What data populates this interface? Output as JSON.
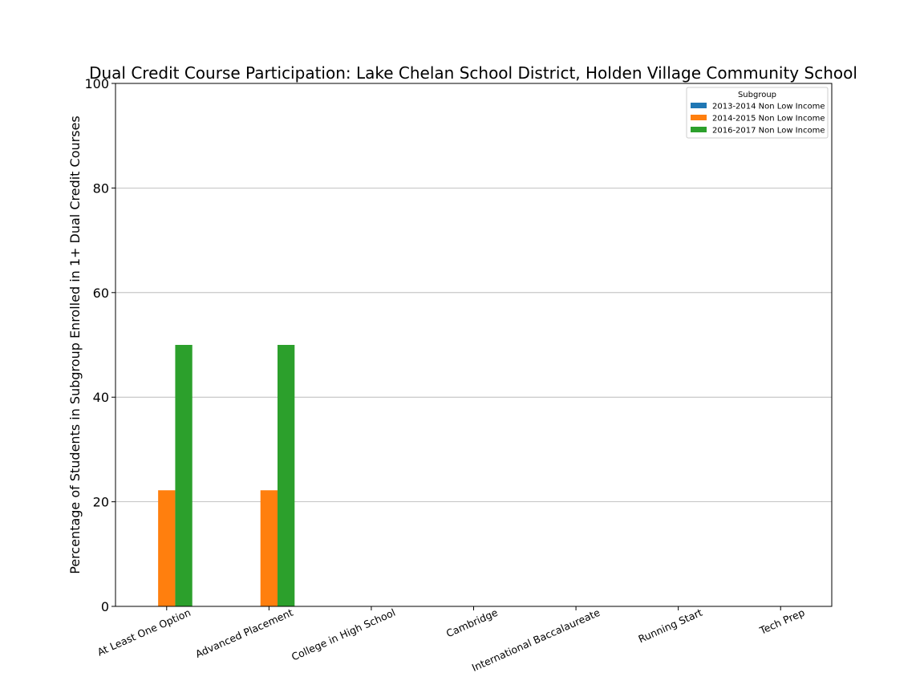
{
  "chart_data": {
    "type": "bar",
    "title": "Dual Credit Course Participation: Lake Chelan School District, Holden Village Community School",
    "xlabel": "",
    "ylabel": "Percentage of Students in Subgroup Enrolled in 1+ Dual Credit Courses",
    "ylim": [
      0,
      100
    ],
    "yticks": [
      0,
      20,
      40,
      60,
      80,
      100
    ],
    "grid": "horizontal",
    "categories": [
      "At Least One Option",
      "Advanced Placement",
      "College in High School",
      "Cambridge",
      "International Baccalaureate",
      "Running Start",
      "Tech Prep"
    ],
    "series": [
      {
        "name": "2013-2014 Non Low Income",
        "color": "#1f77b4",
        "values": [
          0,
          0,
          0,
          0,
          0,
          0,
          0
        ]
      },
      {
        "name": "2014-2015 Non Low Income",
        "color": "#ff7f0e",
        "values": [
          22.2,
          22.2,
          0,
          0,
          0,
          0,
          0
        ]
      },
      {
        "name": "2016-2017 Non Low Income",
        "color": "#2ca02c",
        "values": [
          50,
          50,
          0,
          0,
          0,
          0,
          0
        ]
      }
    ],
    "legend": {
      "title": "Subgroup",
      "position": "top-right"
    }
  }
}
